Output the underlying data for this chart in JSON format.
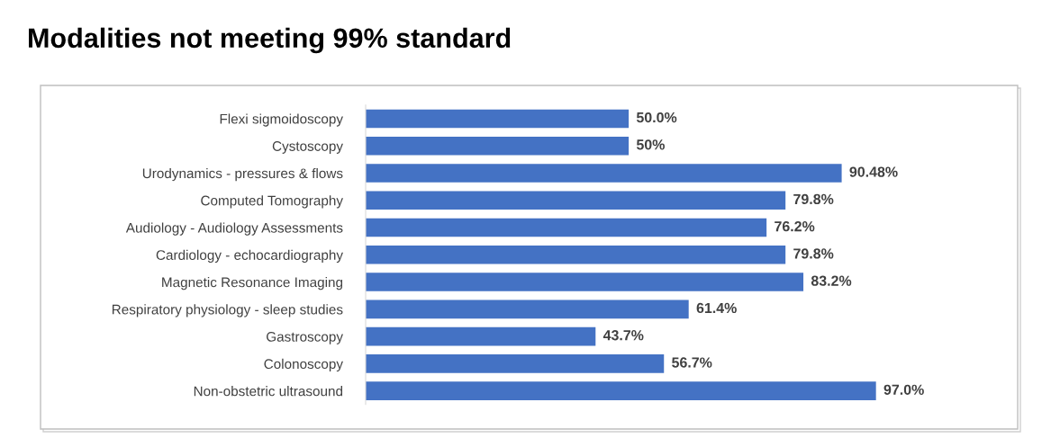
{
  "chart_data": {
    "type": "bar",
    "orientation": "horizontal",
    "title": "Modalities not meeting 99% standard",
    "categories": [
      "Flexi sigmoidoscopy",
      "Cystoscopy",
      "Urodynamics - pressures & flows",
      "Computed Tomography",
      "Audiology - Audiology Assessments",
      "Cardiology - echocardiography",
      "Magnetic Resonance Imaging",
      "Respiratory physiology - sleep studies",
      "Gastroscopy",
      "Colonoscopy",
      "Non-obstetric ultrasound"
    ],
    "values": [
      50.0,
      50,
      90.48,
      79.8,
      76.2,
      79.8,
      83.2,
      61.4,
      43.7,
      56.7,
      97.0
    ],
    "value_labels": [
      "50.0%",
      "50%",
      "90.48%",
      "79.8%",
      "76.2%",
      "79.8%",
      "83.2%",
      "61.4%",
      "43.7%",
      "56.7%",
      "97.0%"
    ],
    "color": "#4472c4",
    "grid": false,
    "legend": false
  }
}
